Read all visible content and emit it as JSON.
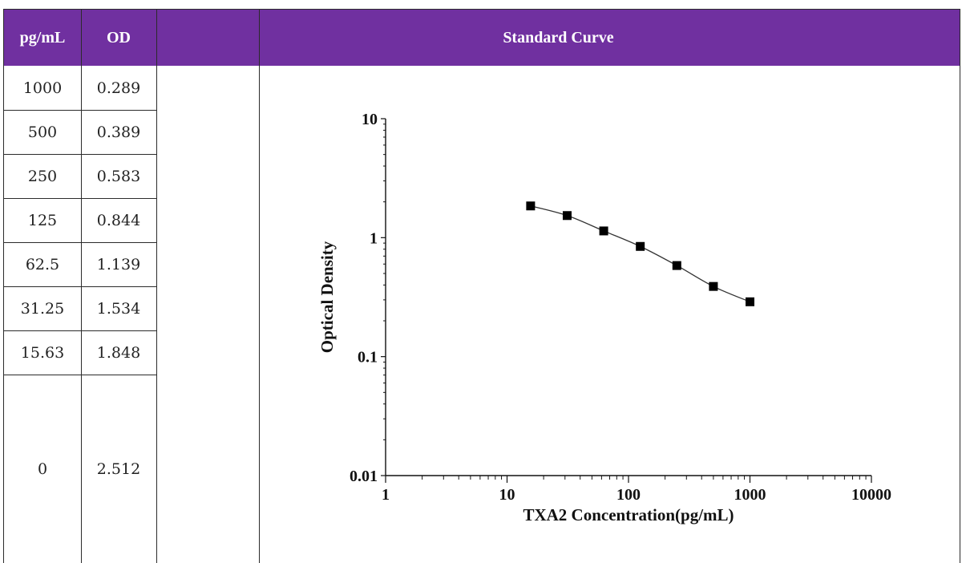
{
  "table": {
    "headers": {
      "concentration": "pg/mL",
      "od": "OD",
      "curve": "Standard Curve"
    },
    "rows": [
      {
        "conc": "1000",
        "od": "0.289"
      },
      {
        "conc": "500",
        "od": "0.389"
      },
      {
        "conc": "250",
        "od": "0.583"
      },
      {
        "conc": "125",
        "od": "0.844"
      },
      {
        "conc": "62.5",
        "od": "1.139"
      },
      {
        "conc": "31.25",
        "od": "1.534"
      },
      {
        "conc": "15.63",
        "od": "1.848"
      },
      {
        "conc": "0",
        "od": "2.512"
      }
    ]
  },
  "colors": {
    "header_background": "#7030a0",
    "header_text": "#ffffff"
  },
  "chart_data": {
    "type": "scatter",
    "title": "",
    "xlabel": "TXA2 Concentration(pg/mL)",
    "ylabel": "Optical Density",
    "x_scale": "log",
    "y_scale": "log",
    "xlim": [
      1,
      10000
    ],
    "ylim": [
      0.01,
      10
    ],
    "x_ticks": [
      "1",
      "10",
      "100",
      "1000",
      "10000"
    ],
    "y_ticks": [
      "0.01",
      "0.1",
      "1",
      "10"
    ],
    "grid": false,
    "marker": "square",
    "fit_line": true,
    "series": [
      {
        "x": [
          15.63,
          31.25,
          62.5,
          125,
          250,
          500,
          1000
        ],
        "y": [
          1.848,
          1.534,
          1.139,
          0.844,
          0.583,
          0.389,
          0.289
        ]
      }
    ]
  }
}
